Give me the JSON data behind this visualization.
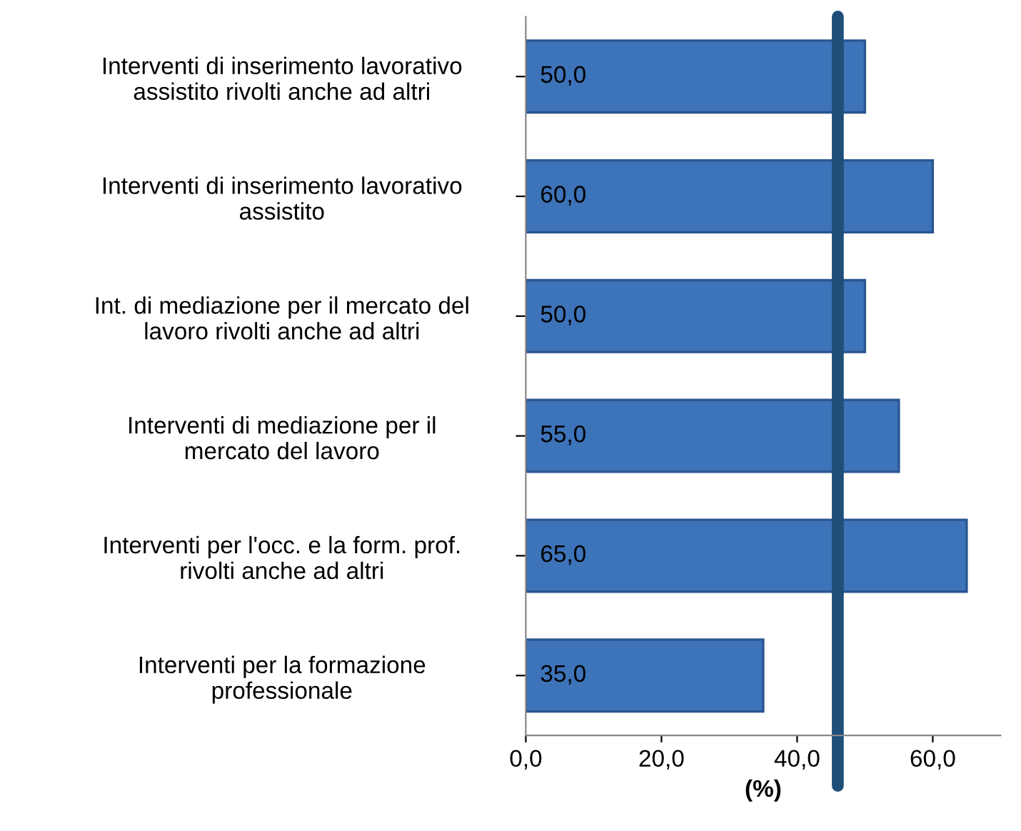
{
  "chart_data": {
    "type": "bar",
    "orientation": "horizontal",
    "categories": [
      "Interventi di inserimento lavorativo\nassistito rivolti anche ad altri",
      "Interventi di inserimento lavorativo\nassistito",
      "Int. di mediazione per il mercato del\nlavoro rivolti anche ad altri",
      "Interventi di mediazione per il\nmercato del lavoro",
      "Interventi per l'occ. e la form. prof.\nrivolti anche ad altri",
      "Interventi per la formazione\nprofessionale"
    ],
    "values": [
      50,
      60,
      50,
      55,
      65,
      35
    ],
    "value_labels": [
      "50,0",
      "60,0",
      "50,0",
      "55,0",
      "65,0",
      "35,0"
    ],
    "color": "#3d73b9",
    "xlabel": "(%)",
    "xlim": [
      0,
      70
    ],
    "xticks": [
      {
        "value": 0,
        "label": "0,0"
      },
      {
        "value": 20,
        "label": "20,0"
      },
      {
        "value": 40,
        "label": "40,0"
      },
      {
        "value": 60,
        "label": "60,0"
      }
    ],
    "ref_lines": [
      {
        "axis": "x",
        "value": 46,
        "color": "#1f4e79"
      }
    ],
    "grid": false
  }
}
